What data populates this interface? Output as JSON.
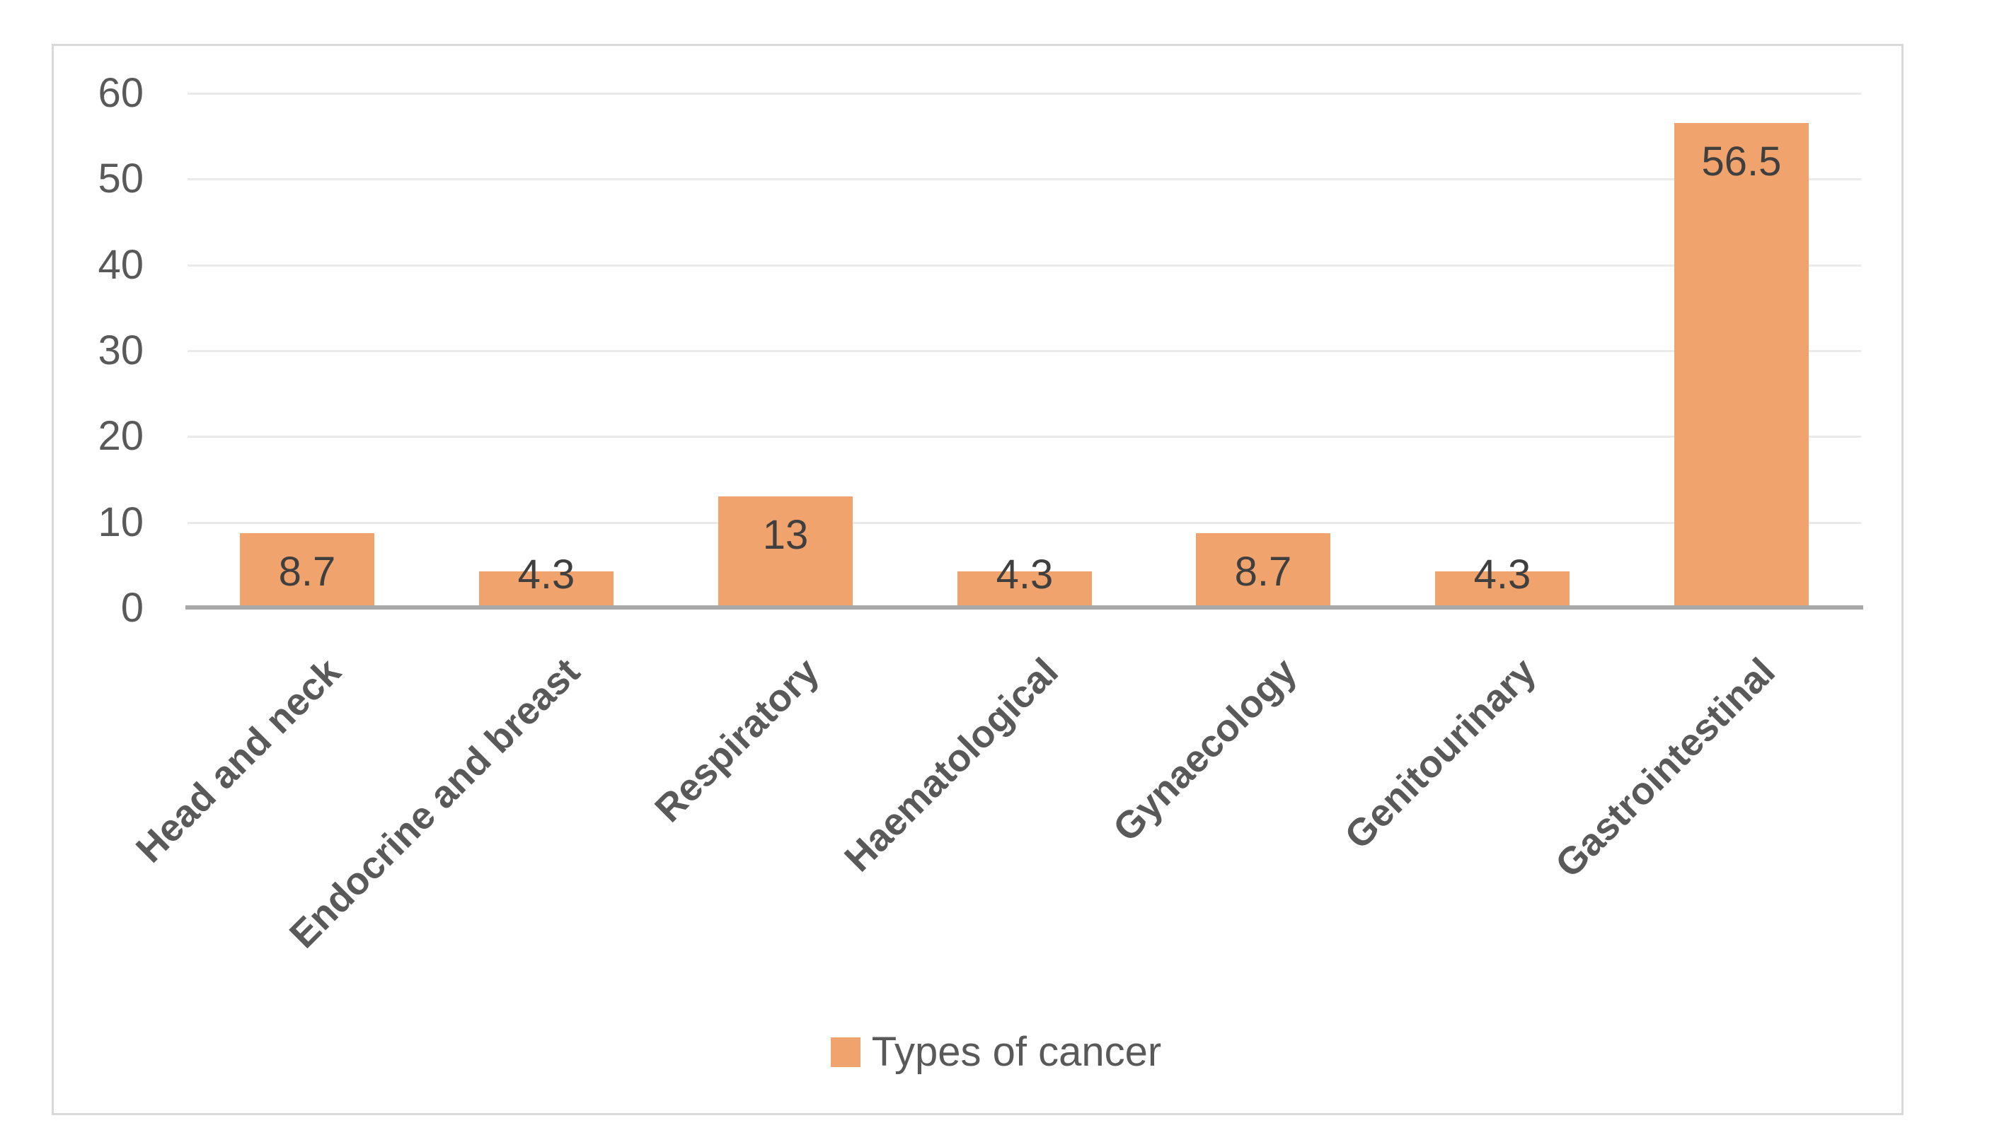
{
  "chart_data": {
    "type": "bar",
    "title": "",
    "xlabel": "",
    "ylabel": "",
    "categories": [
      "Head and neck",
      "Endocrine and breast",
      "Respiratory",
      "Haematological",
      "Gynaecology",
      "Genitourinary",
      "Gastrointestinal"
    ],
    "series": [
      {
        "name": "Types of cancer",
        "values": [
          8.7,
          4.3,
          13,
          4.3,
          8.7,
          4.3,
          56.5
        ]
      }
    ],
    "series_name": "Types of cancer",
    "data_labels": [
      "8.7",
      "4.3",
      "13",
      "4.3",
      "8.7",
      "4.3",
      "56.5"
    ],
    "ylim": [
      0,
      60
    ],
    "yticks": [
      0,
      10,
      20,
      30,
      40,
      50,
      60
    ],
    "grid": true,
    "legend_position": "bottom",
    "category_label_rotation_deg": 45,
    "colors": {
      "bar": "#F0A36C",
      "gridline": "#EAEAEA",
      "axis_line": "#A8A8A8",
      "tick_text": "#595959",
      "value_label_text": "#3F3F3F",
      "category_text": "#595959",
      "legend_text": "#595959",
      "frame_border": "#D9D9D9",
      "background": "#FFFFFF"
    }
  },
  "legend": {
    "label": "Types of cancer"
  }
}
